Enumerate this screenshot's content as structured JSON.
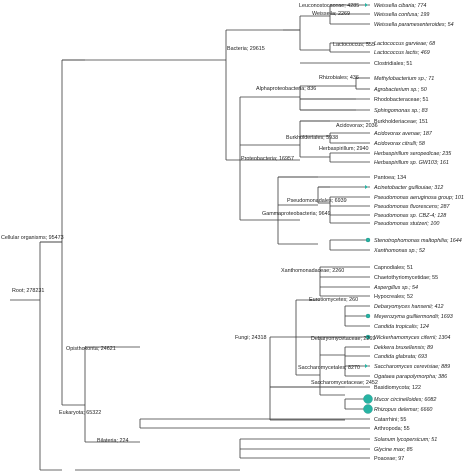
{
  "colors": {
    "edge": "#3a3a3a",
    "text": "#222222",
    "marker": "#27b3a3",
    "marker_stroke": "#1d8c80"
  },
  "nodes": {
    "root": "Root; 278231",
    "cellular": "Cellular organisms; 95473",
    "bacteria": "Bacteria; 29615",
    "leuconostocaceae": "Leuconostocaceae; 4285",
    "weissella": "Weissella; 2269",
    "lactococcus": "Lactococcus; 555",
    "rhizobiales": "Rhizobiales; 436",
    "alphaproteobacteria": "Alphaproteobacteria; 836",
    "burkholderiales": "Burkholderiales; 5938",
    "acidovorax": "Acidovorax; 2036",
    "herbaspirillum": "Herbaspirillum; 2940",
    "proteobacteria": "Proteobacteria; 16957",
    "pseudomonadales": "Pseudomonadales; 6939",
    "gammaproteobacteria": "Gammaproteobacteria; 9649",
    "xanthomonadaceae": "Xanthomonadaceae; 2260",
    "eurotiomycetes": "Eurotiomycetes; 260",
    "debaryomycetaceae": "Debaryomycetaceae; 2269",
    "saccharomycetales": "Saccharomycetales; 8270",
    "saccharomycetaceae": "Saccharomycetaceae; 2452",
    "fungi": "Fungi; 24318",
    "opisthokonta": "Opisthokonta; 24621",
    "eukaryota": "Eukaryota; 65322",
    "bilateria": "Bilateria; 224"
  },
  "leaves": [
    {
      "label": "Weissella cibaria; 774",
      "italic": true,
      "marker": "arrow"
    },
    {
      "label": "Weissella confusa; 199",
      "italic": true,
      "marker": ""
    },
    {
      "label": "Weissella paramesenteroides; 54",
      "italic": true,
      "marker": ""
    },
    {
      "label": "Lactococcus garvieae; 68",
      "italic": true,
      "marker": ""
    },
    {
      "label": "Lactococcus lactis; 469",
      "italic": true,
      "marker": ""
    },
    {
      "label": "Clostridiales; 51",
      "italic": false,
      "marker": ""
    },
    {
      "label": "Methylobacterium sp.; 71",
      "italic": true,
      "marker": ""
    },
    {
      "label": "Agrobacterium sp.; 50",
      "italic": true,
      "marker": ""
    },
    {
      "label": "Rhodobacteraceae; 51",
      "italic": false,
      "marker": ""
    },
    {
      "label": "Sphingomonas sp.; 83",
      "italic": true,
      "marker": ""
    },
    {
      "label": "Burkholderiaceae; 151",
      "italic": false,
      "marker": ""
    },
    {
      "label": "Acidovorax avenae; 187",
      "italic": true,
      "marker": ""
    },
    {
      "label": "Acidovorax citrulli; 58",
      "italic": true,
      "marker": ""
    },
    {
      "label": "Herbaspirillum seropedicae; 235",
      "italic": true,
      "marker": ""
    },
    {
      "label": "Herbaspirillum sp. GW103; 161",
      "italic": true,
      "marker": ""
    },
    {
      "label": "Pantoea; 134",
      "italic": false,
      "marker": ""
    },
    {
      "label": "Acinetobacter guillouiae; 312",
      "italic": true,
      "marker": "arrow"
    },
    {
      "label": "Pseudomonas aeruginosa group; 101",
      "italic": true,
      "marker": ""
    },
    {
      "label": "Pseudomonas fluorescens; 287",
      "italic": true,
      "marker": ""
    },
    {
      "label": "Pseudomonas sp. CBZ-4; 128",
      "italic": true,
      "marker": ""
    },
    {
      "label": "Pseudomonas stutzeri; 100",
      "italic": true,
      "marker": ""
    },
    {
      "label": "Stenotrophomonas maltophilia; 1644",
      "italic": true,
      "marker": "small"
    },
    {
      "label": "Xanthomonas sp.; 52",
      "italic": true,
      "marker": ""
    },
    {
      "label": "Capnodiales; 51",
      "italic": false,
      "marker": ""
    },
    {
      "label": "Chaetothyriomycetidae; 55",
      "italic": false,
      "marker": ""
    },
    {
      "label": "Aspergillus sp.; 54",
      "italic": true,
      "marker": ""
    },
    {
      "label": "Hypocreales; 52",
      "italic": false,
      "marker": ""
    },
    {
      "label": "Debaryomyces hansenii; 412",
      "italic": true,
      "marker": ""
    },
    {
      "label": "Meyerozyma guilliermondii; 1693",
      "italic": true,
      "marker": "small"
    },
    {
      "label": "Candida tropicalis; 124",
      "italic": true,
      "marker": ""
    },
    {
      "label": "Wickerhamomyces ciferrii; 1304",
      "italic": true,
      "marker": "small"
    },
    {
      "label": "Dekkera bruxellensis; 89",
      "italic": true,
      "marker": ""
    },
    {
      "label": "Candida glabrata; 693",
      "italic": true,
      "marker": ""
    },
    {
      "label": "Saccharomyces cerevisiae; 889",
      "italic": true,
      "marker": "arrow"
    },
    {
      "label": "Ogataea parapolymorpha; 386",
      "italic": true,
      "marker": ""
    },
    {
      "label": "Basidiomycota; 122",
      "italic": false,
      "marker": ""
    },
    {
      "label": "Mucor circinelloides; 6082",
      "italic": true,
      "marker": "big"
    },
    {
      "label": "Rhizopus delemar; 6660",
      "italic": true,
      "marker": "big"
    },
    {
      "label": "Catarrhini; 55",
      "italic": false,
      "marker": ""
    },
    {
      "label": "Arthropoda; 55",
      "italic": false,
      "marker": ""
    },
    {
      "label": "Solanum lycopersicum; 51",
      "italic": true,
      "marker": ""
    },
    {
      "label": "Glycine max; 85",
      "italic": true,
      "marker": ""
    },
    {
      "label": "Poaceae; 97",
      "italic": false,
      "marker": ""
    }
  ]
}
